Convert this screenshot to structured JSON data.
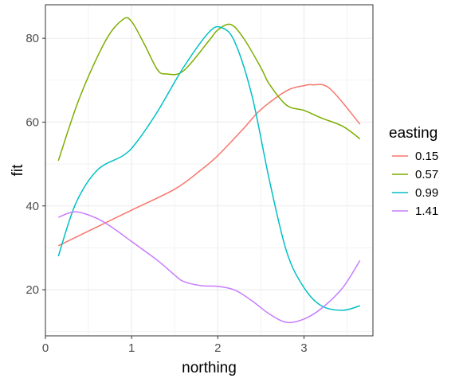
{
  "chart_data": {
    "type": "line",
    "xlabel": "northing",
    "ylabel": "fit",
    "xlim": [
      0,
      3.8
    ],
    "ylim": [
      9,
      88
    ],
    "x_ticks": [
      0,
      1,
      2,
      3
    ],
    "y_ticks": [
      20,
      40,
      60,
      80
    ],
    "grid": true,
    "legend": {
      "title": "easting",
      "position": "right"
    },
    "series": [
      {
        "name": "0.15",
        "color": "#F8766D",
        "x": [
          0.15,
          0.5,
          1.0,
          1.5,
          1.8,
          2.0,
          2.3,
          2.5,
          2.8,
          3.0,
          3.1,
          3.3,
          3.65
        ],
        "y": [
          30.5,
          34,
          39,
          44,
          48.5,
          52,
          58.5,
          63,
          67.5,
          68.7,
          68.9,
          68,
          59.5
        ]
      },
      {
        "name": "0.57",
        "color": "#7CAE00",
        "x": [
          0.15,
          0.4,
          0.7,
          0.9,
          1.0,
          1.15,
          1.3,
          1.4,
          1.6,
          1.9,
          2.0,
          2.15,
          2.3,
          2.5,
          2.6,
          2.8,
          3.0,
          3.2,
          3.45,
          3.65
        ],
        "y": [
          50.8,
          66,
          79.5,
          84.5,
          84,
          78.5,
          72.5,
          71.5,
          72.2,
          79.5,
          82,
          83.3,
          80,
          73,
          69,
          64,
          62.8,
          61,
          59,
          56
        ]
      },
      {
        "name": "0.99",
        "color": "#00BFC4",
        "x": [
          0.15,
          0.35,
          0.6,
          0.9,
          1.05,
          1.3,
          1.6,
          1.9,
          2.05,
          2.2,
          2.4,
          2.6,
          2.8,
          3.0,
          3.2,
          3.45,
          3.65
        ],
        "y": [
          28,
          40.5,
          48.5,
          52,
          55,
          62.5,
          73,
          81.5,
          82.5,
          79,
          66,
          46,
          29,
          20.5,
          16.2,
          15.1,
          16.2
        ]
      },
      {
        "name": "1.41",
        "color": "#C77CFF",
        "x": [
          0.15,
          0.35,
          0.6,
          0.8,
          1.0,
          1.3,
          1.5,
          1.6,
          1.8,
          2.0,
          2.2,
          2.4,
          2.6,
          2.8,
          3.0,
          3.2,
          3.45,
          3.65
        ],
        "y": [
          37.3,
          38.6,
          37,
          34.5,
          31.5,
          27,
          23.5,
          22,
          21,
          20.8,
          19.9,
          17.3,
          14.2,
          12.2,
          13,
          15.5,
          20.5,
          27
        ]
      }
    ]
  }
}
